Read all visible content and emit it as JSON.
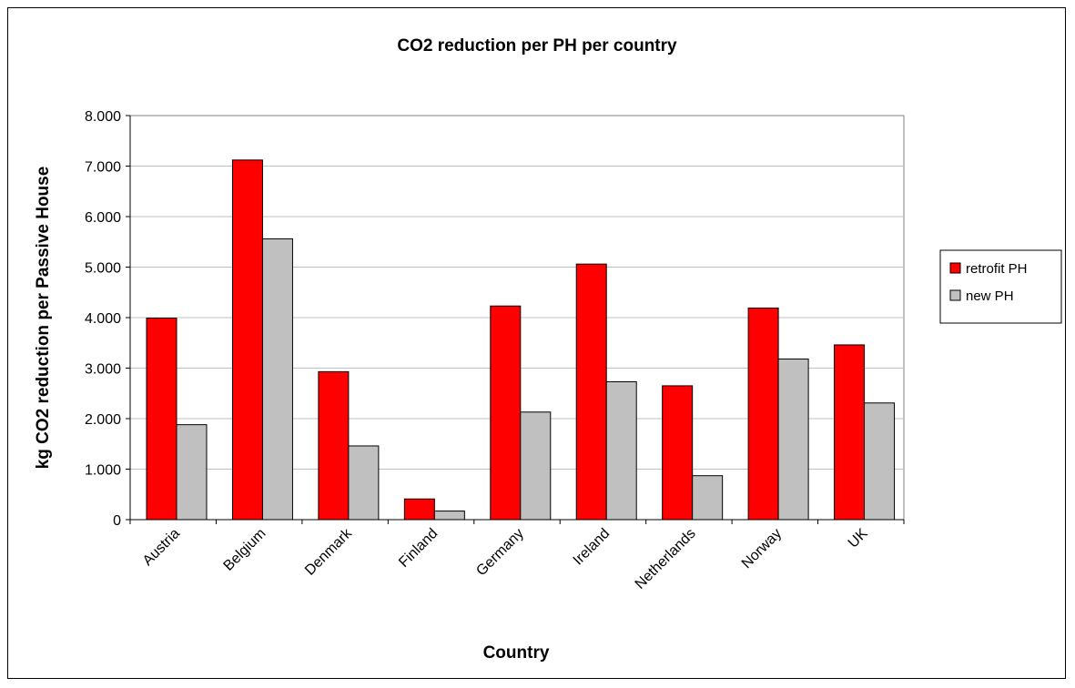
{
  "chart_data": {
    "type": "bar",
    "title": "CO2 reduction per PH per country",
    "xlabel": "Country",
    "ylabel": "kg CO2 reduction per Passive House",
    "categories": [
      "Austria",
      "Belgium",
      "Denmark",
      "Finland",
      "Germany",
      "Ireland",
      "Netherlands",
      "Norway",
      "UK"
    ],
    "series": [
      {
        "name": "retrofit PH",
        "color": "#ff0000",
        "values": [
          3990,
          7120,
          2930,
          410,
          4230,
          5060,
          2650,
          4190,
          3460
        ]
      },
      {
        "name": "new PH",
        "color": "#c0c0c0",
        "values": [
          1880,
          5560,
          1460,
          170,
          2130,
          2730,
          870,
          3180,
          2310
        ]
      }
    ],
    "ylim": [
      0,
      8000
    ],
    "yticks": [
      0,
      1000,
      2000,
      3000,
      4000,
      5000,
      6000,
      7000,
      8000
    ],
    "ytick_labels": [
      "0",
      "1.000",
      "2.000",
      "3.000",
      "4.000",
      "5.000",
      "6.000",
      "7.000",
      "8.000"
    ],
    "grid": true,
    "legend_position": "right"
  }
}
